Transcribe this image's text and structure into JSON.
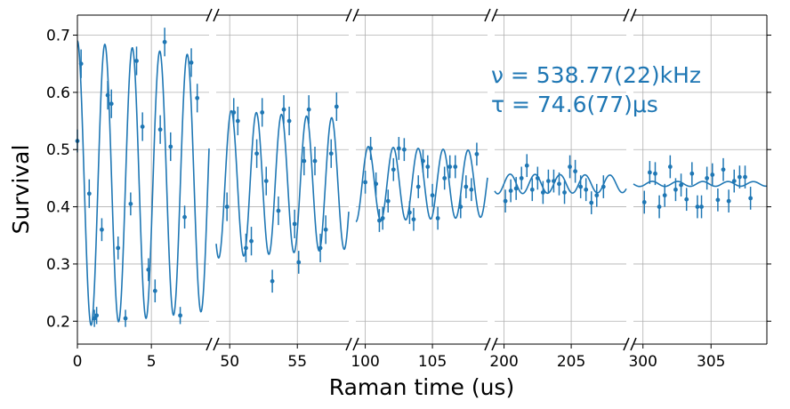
{
  "chart_data": {
    "type": "scatter",
    "xlabel": "Raman time (us)",
    "ylabel": "Survival",
    "ylim": [
      0.16,
      0.735
    ],
    "yticks": [
      0.2,
      0.3,
      0.4,
      0.5,
      0.6,
      0.7
    ],
    "grid": true,
    "color": "#1f77b4",
    "broken_x_axis": true,
    "annotation": {
      "line1": "ν = 538.77(22)kHz",
      "line2": "τ = 74.6(77)μs"
    },
    "fit": {
      "frequency_khz": 538.77,
      "tau_us": 74.6,
      "offset": 0.44,
      "amplitude": 0.25
    },
    "panels": [
      {
        "xlim": [
          0,
          8.9
        ],
        "ticks": [
          0,
          5
        ],
        "tick_labels": [
          "0",
          "5"
        ],
        "points": [
          {
            "x": 0.0,
            "y": 0.515,
            "e": 0.02
          },
          {
            "x": 0.25,
            "y": 0.65,
            "e": 0.025
          },
          {
            "x": 0.8,
            "y": 0.423,
            "e": 0.025
          },
          {
            "x": 1.15,
            "y": 0.205,
            "e": 0.015
          },
          {
            "x": 1.3,
            "y": 0.21,
            "e": 0.015
          },
          {
            "x": 1.65,
            "y": 0.36,
            "e": 0.02
          },
          {
            "x": 2.05,
            "y": 0.595,
            "e": 0.025
          },
          {
            "x": 2.3,
            "y": 0.58,
            "e": 0.025
          },
          {
            "x": 2.75,
            "y": 0.328,
            "e": 0.02
          },
          {
            "x": 3.25,
            "y": 0.205,
            "e": 0.015
          },
          {
            "x": 3.6,
            "y": 0.405,
            "e": 0.02
          },
          {
            "x": 4.0,
            "y": 0.655,
            "e": 0.025
          },
          {
            "x": 4.4,
            "y": 0.54,
            "e": 0.025
          },
          {
            "x": 4.8,
            "y": 0.29,
            "e": 0.02
          },
          {
            "x": 5.25,
            "y": 0.253,
            "e": 0.02
          },
          {
            "x": 5.6,
            "y": 0.535,
            "e": 0.025
          },
          {
            "x": 5.9,
            "y": 0.688,
            "e": 0.025
          },
          {
            "x": 6.3,
            "y": 0.505,
            "e": 0.025
          },
          {
            "x": 6.95,
            "y": 0.21,
            "e": 0.015
          },
          {
            "x": 7.25,
            "y": 0.382,
            "e": 0.02
          },
          {
            "x": 7.7,
            "y": 0.652,
            "e": 0.025
          },
          {
            "x": 8.1,
            "y": 0.59,
            "e": 0.025
          }
        ]
      },
      {
        "xlim": [
          49.0,
          58.8
        ],
        "ticks": [
          50,
          55
        ],
        "tick_labels": [
          "50",
          "55"
        ],
        "points": [
          {
            "x": 49.8,
            "y": 0.4,
            "e": 0.025
          },
          {
            "x": 50.3,
            "y": 0.565,
            "e": 0.025
          },
          {
            "x": 50.6,
            "y": 0.55,
            "e": 0.025
          },
          {
            "x": 51.2,
            "y": 0.328,
            "e": 0.025
          },
          {
            "x": 51.6,
            "y": 0.34,
            "e": 0.025
          },
          {
            "x": 52.0,
            "y": 0.493,
            "e": 0.025
          },
          {
            "x": 52.4,
            "y": 0.565,
            "e": 0.025
          },
          {
            "x": 52.7,
            "y": 0.445,
            "e": 0.025
          },
          {
            "x": 53.15,
            "y": 0.27,
            "e": 0.02
          },
          {
            "x": 53.6,
            "y": 0.393,
            "e": 0.025
          },
          {
            "x": 54.0,
            "y": 0.57,
            "e": 0.025
          },
          {
            "x": 54.4,
            "y": 0.55,
            "e": 0.025
          },
          {
            "x": 54.8,
            "y": 0.37,
            "e": 0.025
          },
          {
            "x": 55.1,
            "y": 0.303,
            "e": 0.02
          },
          {
            "x": 55.5,
            "y": 0.48,
            "e": 0.025
          },
          {
            "x": 55.85,
            "y": 0.57,
            "e": 0.025
          },
          {
            "x": 56.3,
            "y": 0.48,
            "e": 0.025
          },
          {
            "x": 56.7,
            "y": 0.328,
            "e": 0.025
          },
          {
            "x": 57.1,
            "y": 0.36,
            "e": 0.025
          },
          {
            "x": 57.5,
            "y": 0.493,
            "e": 0.025
          },
          {
            "x": 57.9,
            "y": 0.575,
            "e": 0.025
          }
        ]
      },
      {
        "xlim": [
          99.3,
          109.1
        ],
        "ticks": [
          100,
          105
        ],
        "tick_labels": [
          "100",
          "105"
        ],
        "points": [
          {
            "x": 100.0,
            "y": 0.443,
            "e": 0.02
          },
          {
            "x": 100.4,
            "y": 0.502,
            "e": 0.02
          },
          {
            "x": 100.8,
            "y": 0.44,
            "e": 0.02
          },
          {
            "x": 101.05,
            "y": 0.376,
            "e": 0.02
          },
          {
            "x": 101.3,
            "y": 0.38,
            "e": 0.02
          },
          {
            "x": 101.7,
            "y": 0.41,
            "e": 0.02
          },
          {
            "x": 102.1,
            "y": 0.465,
            "e": 0.02
          },
          {
            "x": 102.5,
            "y": 0.502,
            "e": 0.02
          },
          {
            "x": 102.9,
            "y": 0.5,
            "e": 0.02
          },
          {
            "x": 103.3,
            "y": 0.39,
            "e": 0.02
          },
          {
            "x": 103.6,
            "y": 0.378,
            "e": 0.02
          },
          {
            "x": 103.95,
            "y": 0.435,
            "e": 0.02
          },
          {
            "x": 104.3,
            "y": 0.48,
            "e": 0.02
          },
          {
            "x": 104.65,
            "y": 0.47,
            "e": 0.02
          },
          {
            "x": 105.0,
            "y": 0.42,
            "e": 0.02
          },
          {
            "x": 105.4,
            "y": 0.38,
            "e": 0.02
          },
          {
            "x": 105.9,
            "y": 0.45,
            "e": 0.02
          },
          {
            "x": 106.3,
            "y": 0.47,
            "e": 0.02
          },
          {
            "x": 106.7,
            "y": 0.47,
            "e": 0.02
          },
          {
            "x": 107.1,
            "y": 0.4,
            "e": 0.02
          },
          {
            "x": 107.5,
            "y": 0.435,
            "e": 0.02
          },
          {
            "x": 107.9,
            "y": 0.43,
            "e": 0.02
          },
          {
            "x": 108.3,
            "y": 0.492,
            "e": 0.02
          }
        ]
      },
      {
        "xlim": [
          199.3,
          209.1
        ],
        "ticks": [
          200,
          205
        ],
        "tick_labels": [
          "200",
          "205"
        ],
        "points": [
          {
            "x": 200.1,
            "y": 0.41,
            "e": 0.02
          },
          {
            "x": 200.5,
            "y": 0.428,
            "e": 0.02
          },
          {
            "x": 200.9,
            "y": 0.432,
            "e": 0.02
          },
          {
            "x": 201.3,
            "y": 0.45,
            "e": 0.02
          },
          {
            "x": 201.7,
            "y": 0.472,
            "e": 0.02
          },
          {
            "x": 202.1,
            "y": 0.43,
            "e": 0.02
          },
          {
            "x": 202.5,
            "y": 0.45,
            "e": 0.02
          },
          {
            "x": 202.9,
            "y": 0.425,
            "e": 0.02
          },
          {
            "x": 203.3,
            "y": 0.445,
            "e": 0.02
          },
          {
            "x": 203.7,
            "y": 0.445,
            "e": 0.02
          },
          {
            "x": 204.1,
            "y": 0.44,
            "e": 0.02
          },
          {
            "x": 204.5,
            "y": 0.425,
            "e": 0.02
          },
          {
            "x": 204.9,
            "y": 0.47,
            "e": 0.02
          },
          {
            "x": 205.3,
            "y": 0.462,
            "e": 0.02
          },
          {
            "x": 205.7,
            "y": 0.435,
            "e": 0.02
          },
          {
            "x": 206.1,
            "y": 0.43,
            "e": 0.02
          },
          {
            "x": 206.5,
            "y": 0.407,
            "e": 0.02
          },
          {
            "x": 206.9,
            "y": 0.42,
            "e": 0.02
          },
          {
            "x": 207.4,
            "y": 0.435,
            "e": 0.02
          }
        ]
      },
      {
        "xlim": [
          299.3,
          309.1
        ],
        "ticks": [
          300,
          305
        ],
        "tick_labels": [
          "300",
          "305"
        ],
        "points": [
          {
            "x": 300.1,
            "y": 0.408,
            "e": 0.02
          },
          {
            "x": 300.5,
            "y": 0.46,
            "e": 0.02
          },
          {
            "x": 300.9,
            "y": 0.458,
            "e": 0.02
          },
          {
            "x": 301.2,
            "y": 0.4,
            "e": 0.02
          },
          {
            "x": 301.6,
            "y": 0.42,
            "e": 0.02
          },
          {
            "x": 302.0,
            "y": 0.47,
            "e": 0.02
          },
          {
            "x": 302.4,
            "y": 0.43,
            "e": 0.02
          },
          {
            "x": 302.8,
            "y": 0.438,
            "e": 0.02
          },
          {
            "x": 303.2,
            "y": 0.413,
            "e": 0.02
          },
          {
            "x": 303.6,
            "y": 0.458,
            "e": 0.02
          },
          {
            "x": 304.0,
            "y": 0.4,
            "e": 0.02
          },
          {
            "x": 304.3,
            "y": 0.4,
            "e": 0.02
          },
          {
            "x": 304.7,
            "y": 0.45,
            "e": 0.02
          },
          {
            "x": 305.1,
            "y": 0.456,
            "e": 0.02
          },
          {
            "x": 305.5,
            "y": 0.412,
            "e": 0.02
          },
          {
            "x": 305.9,
            "y": 0.465,
            "e": 0.02
          },
          {
            "x": 306.3,
            "y": 0.41,
            "e": 0.02
          },
          {
            "x": 306.7,
            "y": 0.445,
            "e": 0.02
          },
          {
            "x": 307.1,
            "y": 0.452,
            "e": 0.02
          },
          {
            "x": 307.5,
            "y": 0.452,
            "e": 0.02
          },
          {
            "x": 307.9,
            "y": 0.415,
            "e": 0.02
          }
        ]
      }
    ]
  }
}
